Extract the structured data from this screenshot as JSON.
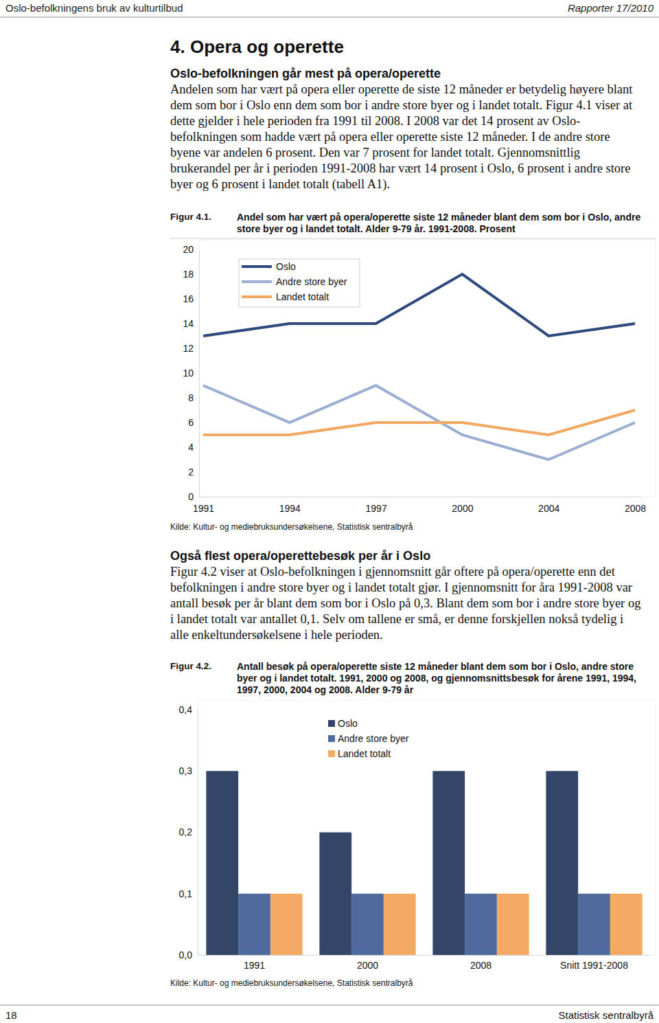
{
  "header": {
    "left": "Oslo-befolkningens bruk av kulturtilbud",
    "right": "Rapporter 17/2010"
  },
  "heading": "4. Opera og operette",
  "sections": [
    {
      "subheading": "Oslo-befolkningen går mest på opera/operette",
      "paragraph": "Andelen som har vært på opera eller operette de siste 12 måneder er betydelig høyere blant dem som bor i Oslo enn dem som bor i andre store byer og i landet totalt. Figur 4.1 viser at dette gjelder i hele perioden fra 1991 til 2008. I 2008 var det 14 prosent av Oslo-befolkningen som hadde vært på opera eller operette siste 12 måneder. I de andre store byene var andelen 6 prosent. Den var 7 prosent for landet totalt. Gjennomsnittlig brukerandel per år i perioden 1991-2008 har vært 14 prosent i Oslo, 6 prosent i andre store byer og 6 prosent i landet totalt (tabell A1)."
    },
    {
      "subheading": "Også flest opera/operettebesøk per år i Oslo",
      "paragraph": "Figur 4.2 viser at Oslo-befolkningen i gjennomsnitt går oftere på opera/operette enn det befolkningen i andre store byer og i landet totalt gjør. I gjennomsnitt for åra 1991-2008 var antall besøk per år blant dem som bor i Oslo på 0,3. Blant dem som bor i andre store byer og i landet totalt var antallet 0,1. Selv om tallene er små, er denne forskjellen nokså tydelig i alle enkeltundersøkelsene i hele perioden."
    }
  ],
  "figures": [
    {
      "label": "Figur 4.1.",
      "caption": "Andel som har vært på opera/operette siste 12 måneder blant dem som bor i Oslo, andre store byer og i landet totalt. Alder 9-79 år. 1991-2008. Prosent",
      "source": "Kilde: Kultur- og mediebruksundersøkelsene, Statistisk sentralbyrå"
    },
    {
      "label": "Figur 4.2.",
      "caption": "Antall besøk på opera/operette siste 12 måneder blant dem som bor i Oslo, andre store byer og i landet totalt. 1991, 2000 og 2008, og gjennomsnittsbesøk for årene 1991, 1994, 1997, 2000, 2004 og 2008. Alder 9-79 år",
      "source": "Kilde: Kultur- og mediebruksundersøkelsene, Statistisk sentralbyrå"
    }
  ],
  "chart_data": [
    {
      "type": "line",
      "categories": [
        "1991",
        "1994",
        "1997",
        "2000",
        "2004",
        "2008"
      ],
      "series": [
        {
          "name": "Oslo",
          "color": "#2e4a7d",
          "values": [
            13,
            14,
            14,
            18,
            13,
            14
          ]
        },
        {
          "name": "Andre store byer",
          "color": "#9aaed2",
          "values": [
            9,
            6,
            9,
            5,
            3,
            6
          ]
        },
        {
          "name": "Landet totalt",
          "color": "#f2a862",
          "values": [
            5,
            5,
            6,
            6,
            5,
            7
          ]
        }
      ],
      "ylim": [
        0,
        20
      ],
      "yticks": [
        0,
        2,
        4,
        6,
        8,
        10,
        12,
        14,
        16,
        18,
        20
      ],
      "grid": false,
      "legend": "top-left"
    },
    {
      "type": "bar",
      "categories": [
        "1991",
        "2000",
        "2008",
        "Snitt 1991-2008"
      ],
      "series": [
        {
          "name": "Oslo",
          "color": "#334668",
          "values": [
            0.3,
            0.2,
            0.3,
            0.3
          ]
        },
        {
          "name": "Andre store byer",
          "color": "#4f6b9e",
          "values": [
            0.1,
            0.1,
            0.1,
            0.1
          ]
        },
        {
          "name": "Landet totalt",
          "color": "#f5aa64",
          "values": [
            0.1,
            0.1,
            0.1,
            0.1
          ]
        }
      ],
      "ylim": [
        0,
        0.4
      ],
      "yticks": [
        {
          "value": 0,
          "label": "0,0"
        },
        {
          "value": 0.1,
          "label": "0,1"
        },
        {
          "value": 0.2,
          "label": "0,2"
        },
        {
          "value": 0.3,
          "label": "0,3"
        },
        {
          "value": 0.4,
          "label": "0,4"
        }
      ],
      "grid": false,
      "legend": "top"
    }
  ],
  "footer": {
    "page": "18",
    "publisher": "Statistisk sentralbyrå"
  }
}
